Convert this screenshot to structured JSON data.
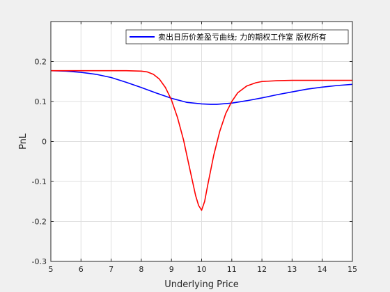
{
  "chart_data": {
    "type": "line",
    "xlabel": "Underlying Price",
    "ylabel": "PnL",
    "xlim": [
      5,
      15
    ],
    "ylim": [
      -0.3,
      0.3
    ],
    "xticks": [
      5,
      6,
      7,
      8,
      9,
      10,
      11,
      12,
      13,
      14,
      15
    ],
    "yticks": [
      -0.3,
      -0.2,
      -0.1,
      0,
      0.1,
      0.2
    ],
    "grid": true,
    "legend_position": "top-right",
    "legend": [
      {
        "label": "卖出日历价差盈亏曲线; 力的期权工作室 版权所有",
        "color": "#0000ff"
      }
    ],
    "series": [
      {
        "name": "卖出日历价差盈亏曲线; 力的期权工作室 版权所有",
        "color": "#0000ff",
        "x": [
          5,
          5.5,
          6,
          6.5,
          7,
          7.5,
          8,
          8.5,
          9,
          9.5,
          10,
          10.3,
          10.5,
          11,
          11.5,
          12,
          12.5,
          13,
          13.5,
          14,
          14.5,
          15
        ],
        "y": [
          0.177,
          0.176,
          0.173,
          0.168,
          0.16,
          0.148,
          0.135,
          0.121,
          0.108,
          0.098,
          0.094,
          0.093,
          0.093,
          0.096,
          0.102,
          0.109,
          0.117,
          0.124,
          0.131,
          0.136,
          0.14,
          0.143
        ]
      },
      {
        "name": "",
        "color": "#ff0000",
        "x": [
          5,
          6,
          7,
          7.5,
          8,
          8.2,
          8.4,
          8.6,
          8.8,
          9,
          9.2,
          9.4,
          9.6,
          9.8,
          9.9,
          10,
          10.1,
          10.2,
          10.4,
          10.6,
          10.8,
          11,
          11.2,
          11.5,
          11.8,
          12,
          12.5,
          13,
          14,
          15
        ],
        "y": [
          0.177,
          0.177,
          0.177,
          0.177,
          0.176,
          0.174,
          0.168,
          0.156,
          0.135,
          0.104,
          0.06,
          0.004,
          -0.066,
          -0.135,
          -0.16,
          -0.172,
          -0.15,
          -0.11,
          -0.035,
          0.025,
          0.07,
          0.1,
          0.122,
          0.139,
          0.147,
          0.15,
          0.152,
          0.153,
          0.153,
          0.153
        ]
      }
    ]
  }
}
